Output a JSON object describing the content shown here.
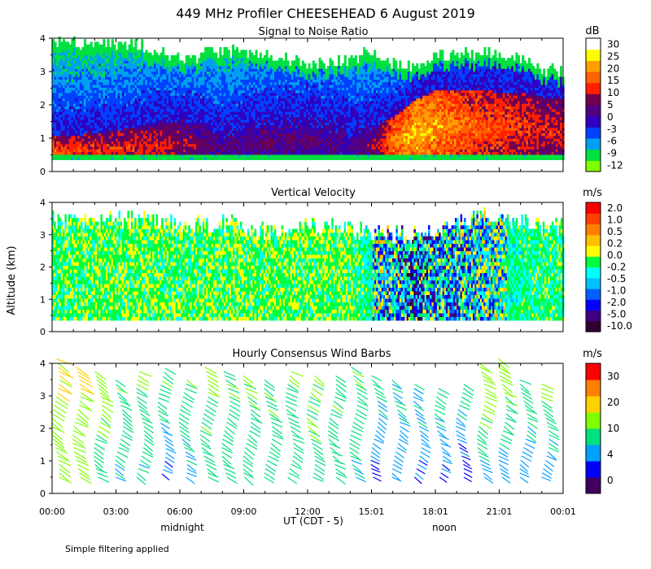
{
  "title": "449 MHz Profiler CHEESEHEAD   6 August 2019",
  "ylabel": "Altitude (km)",
  "xlabel": "UT  (CDT - 5)",
  "x_ticks": [
    "00:00",
    "03:00",
    "06:00",
    "09:00",
    "12:00",
    "15:01",
    "18:01",
    "21:01",
    "00:01"
  ],
  "local_markers": [
    {
      "label": "midnight",
      "hour": 6
    },
    {
      "label": "noon",
      "hour": 18
    }
  ],
  "footer": "Simple filtering applied",
  "y_ticks": [
    "0",
    "1",
    "2",
    "3",
    "4"
  ],
  "colors": {
    "snr": [
      "#80ff00",
      "#00e040",
      "#00a0f0",
      "#0040ff",
      "#3000c0",
      "#500080",
      "#700050",
      "#ff2000",
      "#ff6000",
      "#ffa000",
      "#ffff00",
      "#ffffff"
    ],
    "vel": [
      "#300030",
      "#400080",
      "#0000ff",
      "#0060ff",
      "#00c0ff",
      "#00ffff",
      "#00ff40",
      "#ffff00",
      "#ffc000",
      "#ff8000",
      "#ff4000",
      "#ff0000"
    ],
    "wind": [
      "#400060",
      "#0000ff",
      "#00a0ff",
      "#00e080",
      "#80ff00",
      "#ffd000",
      "#ff8000",
      "#ff0000"
    ]
  },
  "chart_data": [
    {
      "type": "heatmap",
      "title": "Signal to Noise Ratio",
      "unit": "dB",
      "ylim": [
        0,
        4
      ],
      "xlim_hours": [
        0,
        24
      ],
      "colorbar_ticks": [
        "30",
        "25",
        "20",
        "15",
        "10",
        "5",
        "0",
        "-3",
        "-6",
        "-9",
        "-12"
      ],
      "colorbar_values": [
        30,
        25,
        20,
        15,
        10,
        5,
        0,
        -3,
        -6,
        -9,
        -12
      ],
      "profile_times_h": [
        0,
        2,
        4,
        6,
        8,
        10,
        12,
        14,
        15,
        16,
        17,
        18,
        20,
        22,
        23
      ],
      "top_km": [
        3.9,
        3.7,
        3.8,
        3.3,
        3.6,
        3.5,
        3.2,
        3.3,
        3.6,
        3.2,
        3.1,
        3.4,
        3.5,
        3.4,
        3.0
      ],
      "boundary_layer_top_km": [
        1.0,
        1.1,
        1.3,
        1.5,
        1.2,
        1.5,
        1.6,
        1.4,
        1.3,
        1.6,
        2.1,
        2.4,
        2.4,
        2.3,
        2.2
      ],
      "peak_snr_db": [
        18,
        15,
        14,
        12,
        8,
        9,
        8,
        7,
        10,
        20,
        24,
        22,
        18,
        16,
        14
      ]
    },
    {
      "type": "heatmap",
      "title": "Vertical Velocity",
      "unit": "m/s",
      "ylim": [
        0,
        4
      ],
      "xlim_hours": [
        0,
        24
      ],
      "colorbar_ticks": [
        "2.0",
        "1.0",
        "0.5",
        "0.2",
        "0.0",
        "-0.2",
        "-0.5",
        "-1.0",
        "-2.0",
        "-5.0",
        "-10.0"
      ],
      "colorbar_values": [
        2.0,
        1.0,
        0.5,
        0.2,
        0.0,
        -0.2,
        -0.5,
        -1.0,
        -2.0,
        -5.0,
        -10.0
      ],
      "profile_times_h": [
        0,
        2,
        4,
        6,
        8,
        10,
        12,
        14,
        16,
        17,
        18,
        20,
        22,
        23
      ],
      "top_km": [
        3.4,
        3.3,
        3.5,
        3.2,
        3.3,
        3.0,
        3.2,
        3.1,
        2.9,
        3.0,
        3.1,
        3.6,
        3.4,
        3.2
      ],
      "typical_w_ms": [
        -0.3,
        -0.2,
        -0.2,
        -0.3,
        -0.2,
        -0.2,
        -0.2,
        -0.2,
        -1.0,
        -1.5,
        -1.2,
        -0.8,
        -0.5,
        -0.4
      ]
    },
    {
      "type": "wind_barbs",
      "title": "Hourly Consensus Wind Barbs",
      "unit": "m/s",
      "ylim": [
        0,
        4
      ],
      "xlim_hours": [
        0,
        24
      ],
      "colorbar_ticks": [
        "30",
        "20",
        "10",
        "4",
        "0"
      ],
      "colorbar_values": [
        30,
        20,
        10,
        4,
        0
      ],
      "hours": [
        0,
        1,
        2,
        3,
        4,
        5,
        6,
        7,
        8,
        9,
        10,
        11,
        12,
        13,
        14,
        15,
        16,
        17,
        18,
        19,
        20,
        21,
        22,
        23
      ],
      "min_alt_km": [
        0.5,
        0.5,
        0.5,
        0.5,
        0.5,
        0.6,
        0.5,
        0.5,
        0.5,
        0.5,
        0.5,
        0.5,
        0.5,
        0.5,
        0.5,
        0.5,
        0.5,
        0.5,
        0.5,
        0.5,
        0.5,
        0.5,
        0.5,
        0.5
      ],
      "max_alt_km": [
        4.2,
        4.0,
        3.8,
        3.6,
        3.8,
        3.9,
        3.6,
        3.9,
        3.8,
        3.7,
        3.6,
        3.8,
        3.7,
        3.7,
        3.9,
        3.7,
        3.5,
        3.4,
        3.3,
        3.4,
        4.1,
        4.2,
        3.6,
        3.4
      ],
      "low_level_speed_ms": [
        12,
        11,
        8,
        7,
        7,
        4,
        6,
        8,
        8,
        8,
        8,
        8,
        8,
        8,
        7,
        3,
        4,
        4,
        3,
        2,
        6,
        5,
        5,
        5
      ],
      "upper_speed_ms": [
        16,
        17,
        12,
        10,
        10,
        10,
        10,
        11,
        10,
        10,
        10,
        10,
        11,
        10,
        10,
        9,
        8,
        8,
        9,
        9,
        13,
        13,
        10,
        11
      ]
    }
  ]
}
